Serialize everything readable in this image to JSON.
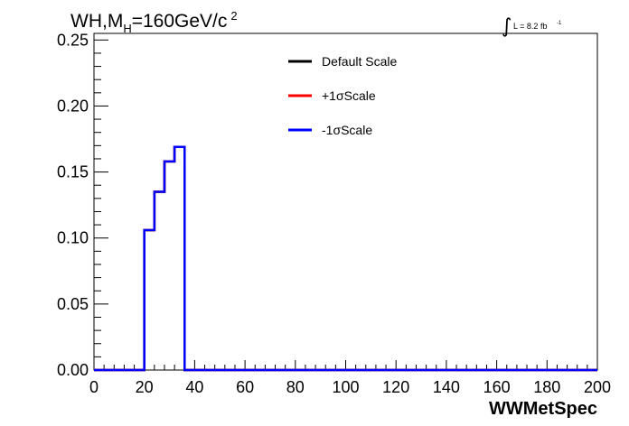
{
  "chart_data": {
    "type": "line",
    "title_main": "WH,M",
    "title_sub": "H",
    "title_rest": "=160GeV/c",
    "title_sup": "2",
    "lumi_text": "L = 8.2 fb",
    "lumi_sup": "-1",
    "xlabel": "WWMetSpec",
    "xlim": [
      0,
      200
    ],
    "ylim": [
      0,
      0.255
    ],
    "x_ticks": [
      "0",
      "20",
      "40",
      "60",
      "80",
      "100",
      "120",
      "140",
      "160",
      "180",
      "200"
    ],
    "y_ticks": [
      "0.00",
      "0.05",
      "0.10",
      "0.15",
      "0.20",
      "0.25"
    ],
    "bin_width": 4,
    "legend_position": "top-center",
    "series": [
      {
        "name": "Default Scale",
        "color": "#000000",
        "bins": [
          [
            0,
            0
          ],
          [
            4,
            0
          ],
          [
            8,
            0
          ],
          [
            12,
            0
          ],
          [
            16,
            0
          ],
          [
            20,
            0.106
          ],
          [
            24,
            0.135
          ],
          [
            28,
            0.158
          ],
          [
            32,
            0.169
          ],
          [
            36,
            0
          ],
          [
            40,
            0
          ],
          [
            200,
            0
          ]
        ]
      },
      {
        "name": "+1σScale",
        "color": "#ff0000",
        "bins": [
          [
            0,
            0
          ],
          [
            4,
            0
          ],
          [
            8,
            0
          ],
          [
            12,
            0
          ],
          [
            16,
            0
          ],
          [
            20,
            0.106
          ],
          [
            24,
            0.135
          ],
          [
            28,
            0.158
          ],
          [
            32,
            0.169
          ],
          [
            36,
            0
          ],
          [
            40,
            0
          ],
          [
            200,
            0
          ]
        ]
      },
      {
        "name": "-1σScale",
        "color": "#0000ff",
        "bins": [
          [
            0,
            0
          ],
          [
            4,
            0
          ],
          [
            8,
            0
          ],
          [
            12,
            0
          ],
          [
            16,
            0
          ],
          [
            20,
            0.106
          ],
          [
            24,
            0.135
          ],
          [
            28,
            0.158
          ],
          [
            32,
            0.169
          ],
          [
            36,
            0
          ],
          [
            40,
            0
          ],
          [
            200,
            0
          ]
        ]
      }
    ]
  }
}
